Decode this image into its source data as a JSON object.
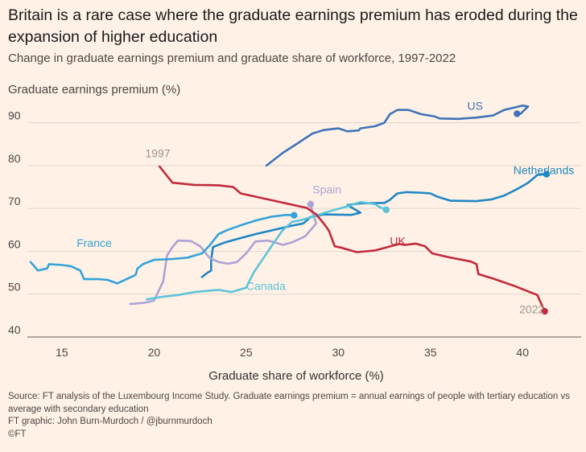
{
  "header": {
    "title": "Britain is a rare case where the graduate earnings premium has eroded during the expansion of higher education",
    "subtitle": "Change in graduate earnings premium and graduate share of workforce, 1997-2022"
  },
  "footer": {
    "source": "Source: FT analysis of the Luxembourg Income Study. Graduate earnings premium = annual earnings of people with tertiary education vs average with secondary education",
    "credit": "FT graphic: John Burn-Murdoch / @jburnmurdoch",
    "copyright": "©FT"
  },
  "chart_data": {
    "type": "line",
    "ylabel": "Graduate earnings premium (%)",
    "xlabel": "Graduate share of workforce (%)",
    "xlim": [
      13.3,
      42
    ],
    "ylim": [
      40,
      95
    ],
    "xticks": [
      15,
      20,
      25,
      30,
      35,
      40
    ],
    "yticks": [
      40,
      50,
      60,
      70,
      80,
      90
    ],
    "grid": true,
    "annotations": [
      {
        "text": "1997",
        "x": 20.2,
        "y": 82,
        "color": "#999591"
      },
      {
        "text": "2022",
        "x": 40.5,
        "y": 45.5,
        "color": "#999591"
      }
    ],
    "series": [
      {
        "name": "US",
        "color": "#3F74B8",
        "end_marker": true,
        "label_x": 37.0,
        "label_y": 93,
        "points": [
          [
            26.1,
            80
          ],
          [
            27,
            83
          ],
          [
            27.9,
            85.5
          ],
          [
            28.6,
            87.5
          ],
          [
            29.2,
            88.3
          ],
          [
            30,
            88.7
          ],
          [
            30.5,
            88
          ],
          [
            31.1,
            88.2
          ],
          [
            31.2,
            88.7
          ],
          [
            32,
            89.2
          ],
          [
            32.5,
            90
          ],
          [
            32.8,
            92
          ],
          [
            33.2,
            93
          ],
          [
            33.8,
            93
          ],
          [
            34.5,
            92
          ],
          [
            35.2,
            91.5
          ],
          [
            35.5,
            91
          ],
          [
            36.5,
            90.9
          ],
          [
            37.5,
            91.2
          ],
          [
            38.4,
            91.7
          ],
          [
            39,
            93
          ],
          [
            39.5,
            93.5
          ],
          [
            40,
            94
          ],
          [
            40.3,
            93.8
          ],
          [
            40.1,
            93
          ],
          [
            39.9,
            92.1
          ],
          [
            39.7,
            92.1
          ]
        ]
      },
      {
        "name": "Netherlands",
        "color": "#1F87C3",
        "end_marker": true,
        "label_x": 39.5,
        "label_y": 78,
        "points": [
          [
            22.6,
            54
          ],
          [
            22.9,
            55
          ],
          [
            23.1,
            55.5
          ],
          [
            23.1,
            58
          ],
          [
            23.2,
            61
          ],
          [
            23.8,
            62
          ],
          [
            24.2,
            62.5
          ],
          [
            24.8,
            63.2
          ],
          [
            25.5,
            64
          ],
          [
            26.5,
            65
          ],
          [
            27.5,
            66
          ],
          [
            28.1,
            66.5
          ],
          [
            28.5,
            68
          ],
          [
            29.2,
            68.6
          ],
          [
            30.7,
            68.5
          ],
          [
            31.2,
            69
          ],
          [
            30.5,
            70.8
          ],
          [
            31.2,
            71.2
          ],
          [
            32.5,
            71.3
          ],
          [
            32.8,
            72
          ],
          [
            33.2,
            73.5
          ],
          [
            33.7,
            73.8
          ],
          [
            34.4,
            73.7
          ],
          [
            35,
            73.5
          ],
          [
            35.4,
            72.7
          ],
          [
            36.1,
            71.8
          ],
          [
            37.5,
            71.7
          ],
          [
            38.3,
            72.1
          ],
          [
            39,
            73
          ],
          [
            39.7,
            74.5
          ],
          [
            40.3,
            76
          ],
          [
            40.8,
            77.8
          ],
          [
            41.3,
            78
          ]
        ]
      },
      {
        "name": "Spain",
        "color": "#ADA2D6",
        "end_marker": true,
        "label_x": 28.6,
        "label_y": 73.5,
        "points": [
          [
            18.7,
            47.7
          ],
          [
            19.5,
            48
          ],
          [
            20,
            48.5
          ],
          [
            20.5,
            53
          ],
          [
            20.7,
            59
          ],
          [
            21,
            61
          ],
          [
            21.3,
            62.5
          ],
          [
            22,
            62.4
          ],
          [
            22.5,
            61.2
          ],
          [
            23,
            58.5
          ],
          [
            23.5,
            57.5
          ],
          [
            24,
            57.1
          ],
          [
            24.5,
            57.5
          ],
          [
            25,
            59.5
          ],
          [
            25.5,
            62.3
          ],
          [
            26.2,
            62.5
          ],
          [
            27,
            61.5
          ],
          [
            27.5,
            62.1
          ],
          [
            28.2,
            63.5
          ],
          [
            28.8,
            66.5
          ],
          [
            28.6,
            69
          ],
          [
            28.5,
            71
          ]
        ]
      },
      {
        "name": "France",
        "color": "#33A3D9",
        "end_marker": true,
        "label_x": 15.8,
        "label_y": 61,
        "points": [
          [
            13.3,
            57.5
          ],
          [
            13.7,
            55.5
          ],
          [
            14.2,
            56
          ],
          [
            14.3,
            57
          ],
          [
            15,
            56.8
          ],
          [
            15.5,
            56.5
          ],
          [
            16,
            55.5
          ],
          [
            16.2,
            53.5
          ],
          [
            17,
            53.5
          ],
          [
            17.5,
            53.3
          ],
          [
            18,
            52.5
          ],
          [
            19,
            54.5
          ],
          [
            19.1,
            56
          ],
          [
            19.4,
            57
          ],
          [
            20,
            58
          ],
          [
            21,
            58.2
          ],
          [
            21.8,
            58.5
          ],
          [
            22.2,
            59
          ],
          [
            22.6,
            59.5
          ],
          [
            23,
            61.3
          ],
          [
            23.5,
            64
          ],
          [
            24,
            65
          ],
          [
            24.8,
            66.2
          ],
          [
            25.6,
            67.3
          ],
          [
            26.4,
            68.1
          ],
          [
            27.2,
            68.5
          ],
          [
            27.6,
            68.4
          ]
        ]
      },
      {
        "name": "Canada",
        "color": "#5BC4D9",
        "end_marker": true,
        "label_x": 25.0,
        "label_y": 51,
        "points": [
          [
            19.6,
            48.8
          ],
          [
            20.5,
            49.4
          ],
          [
            21.3,
            49.8
          ],
          [
            22.2,
            50.5
          ],
          [
            23.5,
            51
          ],
          [
            24.2,
            50.5
          ],
          [
            25,
            51.5
          ],
          [
            25.4,
            55
          ],
          [
            26,
            58.8
          ],
          [
            26.5,
            62
          ],
          [
            27,
            65
          ],
          [
            27.5,
            66.9
          ],
          [
            28,
            67.3
          ],
          [
            29.5,
            69.3
          ],
          [
            30.5,
            70.5
          ],
          [
            31.2,
            71.5
          ],
          [
            32,
            71
          ],
          [
            32.2,
            70.4
          ],
          [
            32.6,
            69.7
          ]
        ]
      },
      {
        "name": "UK",
        "color": "#C02A3E",
        "end_marker": true,
        "label_x": 32.8,
        "label_y": 61.5,
        "points": [
          [
            20.3,
            79.8
          ],
          [
            21,
            76
          ],
          [
            21.5,
            75.8
          ],
          [
            22.2,
            75.5
          ],
          [
            23.5,
            75.4
          ],
          [
            24.3,
            75
          ],
          [
            24.7,
            73.5
          ],
          [
            26.2,
            72.1
          ],
          [
            28.3,
            70.1
          ],
          [
            28.8,
            68.6
          ],
          [
            29.3,
            66
          ],
          [
            29.5,
            64.7
          ],
          [
            29.8,
            61.2
          ],
          [
            30.2,
            60.8
          ],
          [
            31,
            59.8
          ],
          [
            32,
            60.2
          ],
          [
            33.3,
            61.7
          ],
          [
            33.6,
            61.5
          ],
          [
            34.2,
            61.8
          ],
          [
            34.7,
            61.2
          ],
          [
            35.1,
            59.5
          ],
          [
            36,
            58.6
          ],
          [
            37.2,
            57.6
          ],
          [
            37.5,
            57
          ],
          [
            37.6,
            54.7
          ],
          [
            38.5,
            53.5
          ],
          [
            39.5,
            52
          ],
          [
            40.8,
            49.8
          ],
          [
            41.2,
            46
          ]
        ]
      }
    ]
  }
}
